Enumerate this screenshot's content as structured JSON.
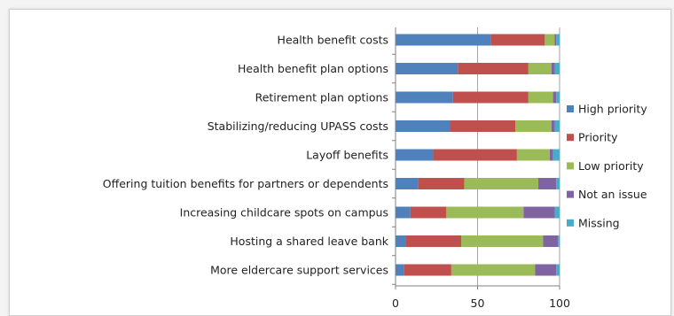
{
  "chart_data": {
    "type": "bar",
    "orientation": "horizontal",
    "stacked": true,
    "categories": [
      "Health benefit costs",
      "Health benefit plan options",
      "Retirement plan options",
      "Stabilizing/reducing UPASS costs",
      "Layoff benefits",
      "Offering tuition benefits for partners or dependents",
      "Increasing childcare spots on campus",
      "Hosting a shared leave bank",
      "More eldercare support services"
    ],
    "series": [
      {
        "name": "High priority",
        "color": "#4f81bd",
        "values": [
          58,
          38,
          35,
          33,
          23,
          14,
          9,
          6,
          5
        ]
      },
      {
        "name": "Priority",
        "color": "#c0504d",
        "values": [
          33,
          43,
          46,
          40,
          51,
          28,
          22,
          34,
          29
        ]
      },
      {
        "name": "Low priority",
        "color": "#9bbb59",
        "values": [
          6,
          14,
          15,
          22,
          20,
          45,
          47,
          50,
          51
        ]
      },
      {
        "name": "Not an issue",
        "color": "#8064a2",
        "values": [
          1,
          2,
          2,
          2,
          2,
          11,
          19,
          9,
          13
        ]
      },
      {
        "name": "Missing",
        "color": "#4bacc6",
        "values": [
          2,
          3,
          2,
          3,
          4,
          2,
          3,
          1,
          2
        ]
      }
    ],
    "xlim": [
      0,
      100
    ],
    "xticks": [
      0,
      50,
      100
    ],
    "grid": "vertical",
    "legend": "right"
  }
}
